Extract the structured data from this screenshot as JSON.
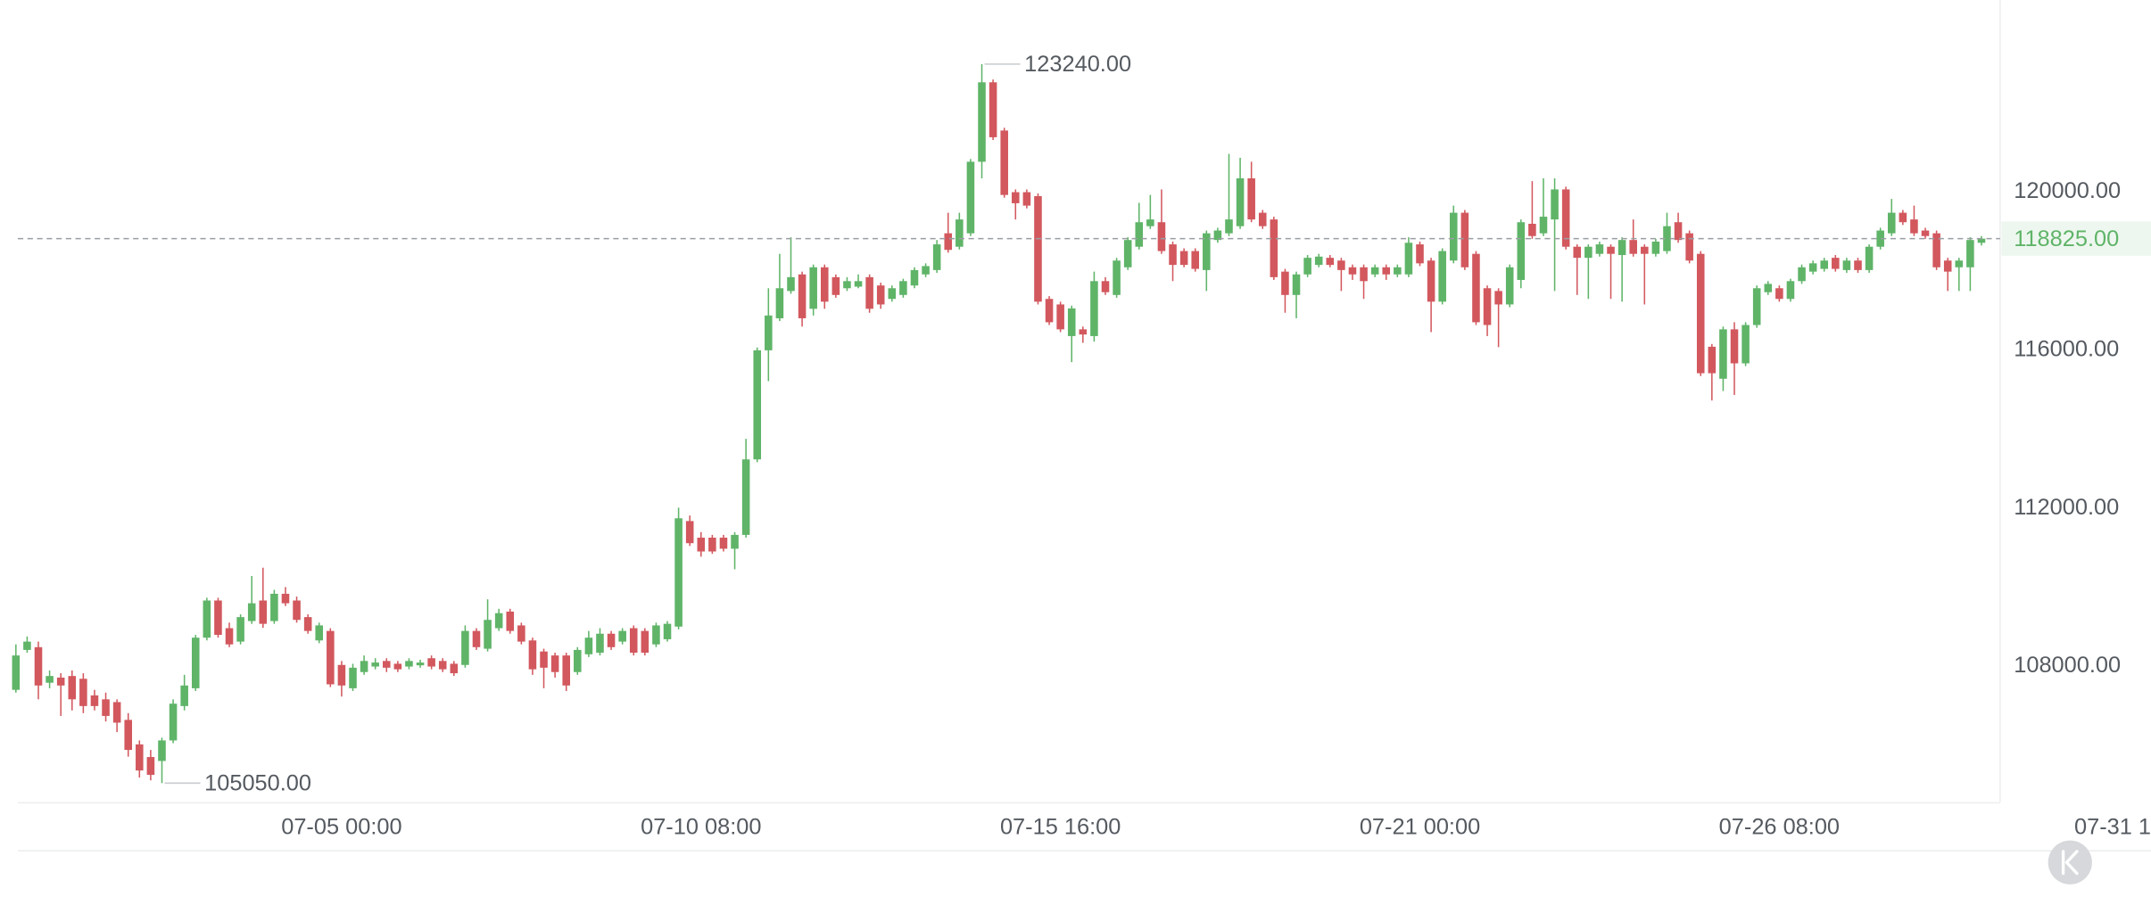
{
  "chart_data": {
    "type": "candlestick",
    "ylim": [
      104570,
      124860
    ],
    "yticks": [
      {
        "value": 120000,
        "label": "120000.00"
      },
      {
        "value": 116000,
        "label": "116000.00"
      },
      {
        "value": 112000,
        "label": "112000.00"
      },
      {
        "value": 108000,
        "label": "108000.00"
      }
    ],
    "xlim": [
      -0.5,
      176.5
    ],
    "xticks": [
      {
        "value": 29,
        "label": "07-05 00:00"
      },
      {
        "value": 61,
        "label": "07-10 08:00"
      },
      {
        "value": 93,
        "label": "07-15 16:00"
      },
      {
        "value": 125,
        "label": "07-21 00:00"
      },
      {
        "value": 157,
        "label": "07-26 08:00"
      },
      {
        "value": 189,
        "label": "07-31 1"
      }
    ],
    "up_color": "#5fb468",
    "down_color": "#d2585e",
    "last_price": {
      "value": 118825,
      "label": "118825.00"
    },
    "max_annotation": {
      "value": 123240,
      "label": "123240.00"
    },
    "min_annotation": {
      "value": 105050,
      "label": "105050.00"
    },
    "open": [
      107410,
      108420,
      108490,
      107590,
      107720,
      107760,
      107690,
      107270,
      107170,
      107100,
      106650,
      106030,
      105710,
      105610,
      106130,
      107000,
      107450,
      108730,
      109670,
      108970,
      108630,
      109150,
      109670,
      109150,
      109840,
      109670,
      109250,
      108660,
      108900,
      108040,
      107450,
      107860,
      108000,
      108140,
      108070,
      108000,
      108030,
      108210,
      108140,
      108070,
      108040,
      108900,
      108450,
      108970,
      109390,
      109040,
      108660,
      108380,
      108280,
      108280,
      107860,
      108310,
      108350,
      108830,
      108630,
      108970,
      108900,
      108560,
      108690,
      109010,
      111680,
      111260,
      111260,
      111260,
      110980,
      111330,
      113240,
      116000,
      116810,
      117500,
      117920,
      117050,
      118100,
      117850,
      117570,
      117610,
      117850,
      117640,
      117300,
      117400,
      117640,
      117920,
      118030,
      118960,
      118620,
      118960,
      120770,
      122780,
      121560,
      120000,
      120000,
      119900,
      117300,
      117160,
      116360,
      116530,
      116360,
      117750,
      117400,
      118100,
      118620,
      119140,
      119240,
      118680,
      118510,
      118510,
      118030,
      118790,
      118960,
      119140,
      120350,
      119480,
      119310,
      117990,
      117400,
      117920,
      118160,
      118340,
      118270,
      118100,
      118100,
      117920,
      118100,
      117920,
      117920,
      118680,
      118270,
      117230,
      118270,
      119480,
      118440,
      117570,
      117500,
      117160,
      117780,
      119200,
      118960,
      119310,
      120070,
      118620,
      118340,
      118440,
      118620,
      118410,
      118790,
      118620,
      118440,
      118510,
      119240,
      118960,
      118440,
      116090,
      115280,
      116530,
      115670,
      116640,
      117470,
      117570,
      117300,
      117750,
      117990,
      118060,
      118340,
      118030,
      118270,
      118030,
      118620,
      118960,
      119480,
      119310,
      119030,
      118960,
      118270,
      118100,
      118100,
      118720
    ],
    "high": [
      108560,
      108760,
      108630,
      107900,
      107830,
      107900,
      107830,
      107410,
      107340,
      107170,
      106820,
      106130,
      105890,
      106200,
      107170,
      107790,
      108800,
      109740,
      109740,
      109110,
      109320,
      110290,
      110500,
      109940,
      110010,
      109770,
      109320,
      109110,
      108970,
      108140,
      108070,
      108280,
      108210,
      108210,
      108140,
      108210,
      108170,
      108280,
      108210,
      108140,
      109040,
      108970,
      109700,
      109460,
      109460,
      109110,
      108730,
      108450,
      108350,
      108350,
      108490,
      108900,
      108970,
      108900,
      108970,
      109040,
      108970,
      109110,
      109150,
      112020,
      111820,
      111400,
      111330,
      111330,
      111400,
      113760,
      116070,
      117570,
      118440,
      118860,
      117990,
      118170,
      118170,
      117920,
      117850,
      117920,
      117920,
      117710,
      117640,
      117810,
      118100,
      118200,
      118790,
      119480,
      119480,
      120840,
      123240,
      122850,
      121630,
      120070,
      120070,
      119970,
      117370,
      117230,
      117130,
      116600,
      117990,
      117850,
      118340,
      118860,
      119730,
      119930,
      120070,
      118750,
      118580,
      118580,
      119030,
      119100,
      120970,
      120870,
      120770,
      119550,
      119380,
      118060,
      117990,
      118410,
      118440,
      118410,
      118340,
      118170,
      118170,
      118170,
      118170,
      118170,
      118860,
      118750,
      118340,
      118580,
      119660,
      119550,
      118510,
      117640,
      117570,
      118170,
      119310,
      120280,
      120350,
      120350,
      120140,
      118680,
      118680,
      118750,
      118680,
      118860,
      119310,
      118680,
      118820,
      119480,
      119480,
      119030,
      118510,
      116160,
      116600,
      116710,
      116710,
      117640,
      117750,
      117640,
      117810,
      118170,
      118270,
      118340,
      118410,
      118340,
      118340,
      118680,
      119100,
      119830,
      119550,
      119660,
      119100,
      119030,
      118340,
      118340,
      118860,
      118890
    ],
    "low": [
      107340,
      108350,
      107170,
      107450,
      106750,
      106890,
      106820,
      106890,
      106610,
      106340,
      105720,
      105190,
      105120,
      105050,
      106060,
      106890,
      107380,
      108660,
      108730,
      108490,
      108560,
      109080,
      108980,
      109080,
      109530,
      109110,
      108830,
      108590,
      107480,
      107240,
      107380,
      107790,
      107930,
      107860,
      107860,
      107930,
      107970,
      107930,
      107860,
      107760,
      107970,
      108420,
      108380,
      108900,
      108830,
      108560,
      107790,
      107450,
      107720,
      107380,
      107790,
      108240,
      108280,
      108420,
      108560,
      108280,
      108280,
      108490,
      108630,
      108940,
      111050,
      110780,
      110850,
      110910,
      110460,
      111260,
      113170,
      115220,
      116740,
      117430,
      116600,
      116880,
      117050,
      117330,
      117500,
      117570,
      116950,
      117050,
      117230,
      117330,
      117570,
      117850,
      117960,
      118470,
      118550,
      118890,
      120350,
      121320,
      119860,
      119310,
      119590,
      117160,
      116640,
      116460,
      115700,
      116190,
      116220,
      117400,
      117330,
      118030,
      118550,
      119070,
      118440,
      117750,
      118100,
      117990,
      117500,
      118720,
      118890,
      119070,
      119240,
      119070,
      117780,
      116950,
      116810,
      117850,
      118100,
      118100,
      117500,
      117780,
      117300,
      117850,
      117780,
      117850,
      117850,
      118130,
      116460,
      117160,
      118200,
      118030,
      116640,
      116360,
      116080,
      117090,
      117570,
      118820,
      118890,
      117500,
      118550,
      117400,
      117300,
      118370,
      117300,
      117230,
      118370,
      117160,
      118370,
      118440,
      118720,
      118200,
      115350,
      114730,
      114970,
      114870,
      115600,
      116570,
      117400,
      117230,
      117230,
      117680,
      117920,
      117990,
      117990,
      117960,
      117960,
      117960,
      118550,
      118890,
      119170,
      118890,
      118820,
      118030,
      117500,
      117500,
      117500,
      118650
    ],
    "close": [
      108280,
      108630,
      107520,
      107760,
      107520,
      107170,
      107000,
      107000,
      106750,
      106580,
      105890,
      105370,
      105260,
      106130,
      107060,
      107520,
      108730,
      109670,
      108800,
      108560,
      109250,
      109600,
      109080,
      109840,
      109600,
      109180,
      108900,
      109040,
      107550,
      107520,
      107970,
      108140,
      108100,
      107970,
      107930,
      108140,
      108100,
      108000,
      107930,
      107830,
      108900,
      108490,
      109180,
      109350,
      108900,
      108630,
      107930,
      107970,
      107860,
      107520,
      108420,
      108730,
      108830,
      108490,
      108900,
      108350,
      108350,
      109040,
      109080,
      111750,
      111120,
      110910,
      110910,
      110980,
      111330,
      113240,
      116000,
      116880,
      117570,
      117850,
      116810,
      118100,
      117230,
      117400,
      117750,
      117750,
      117050,
      117160,
      117570,
      117750,
      118030,
      118130,
      118680,
      118540,
      119310,
      120770,
      122780,
      121390,
      119930,
      119720,
      119660,
      117230,
      116710,
      116530,
      117060,
      116400,
      117750,
      117470,
      118270,
      118790,
      119240,
      119310,
      118510,
      118160,
      118160,
      118060,
      118960,
      119030,
      119310,
      120350,
      119310,
      119140,
      117850,
      117400,
      117920,
      118340,
      118370,
      118160,
      118030,
      117920,
      117750,
      118100,
      117920,
      118100,
      118720,
      118200,
      117230,
      118510,
      119480,
      118100,
      116710,
      116640,
      117160,
      118100,
      119240,
      118890,
      119380,
      120070,
      118620,
      118340,
      118620,
      118680,
      118440,
      118790,
      118440,
      118440,
      118750,
      119140,
      118790,
      118270,
      115420,
      115420,
      116530,
      115670,
      116640,
      117570,
      117680,
      117300,
      117750,
      118100,
      118200,
      118270,
      118060,
      118270,
      118030,
      118620,
      119030,
      119480,
      119240,
      118960,
      118890,
      118100,
      117990,
      118270,
      118790,
      118825
    ]
  }
}
